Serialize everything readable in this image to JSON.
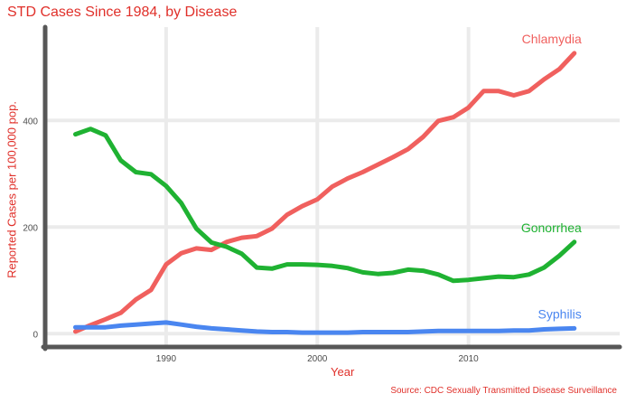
{
  "colors": {
    "accent": "#e0302a",
    "chlamydia": "#f0605e",
    "gonorrhea": "#1fb232",
    "syphilis": "#4a86f0",
    "axis": "#575757",
    "grid": "#ebebeb",
    "tick_text": "#4d4d4d"
  },
  "chart_data": {
    "type": "line",
    "title": "STD Cases Since 1984, by Disease",
    "xlabel": "Year",
    "ylabel": "Reported Cases per 100,000 pop.",
    "caption": "Source: CDC Sexually Transmitted Disease Surveillance",
    "xlim": [
      1982,
      2020
    ],
    "ylim": [
      -25,
      575
    ],
    "x_ticks": [
      1990,
      2000,
      2010
    ],
    "y_ticks": [
      0,
      200,
      400
    ],
    "grid": true,
    "legend": "direct labels at series ends",
    "x": [
      1984,
      1985,
      1986,
      1987,
      1988,
      1989,
      1990,
      1991,
      1992,
      1993,
      1994,
      1995,
      1996,
      1997,
      1998,
      1999,
      2000,
      2001,
      2002,
      2003,
      2004,
      2005,
      2006,
      2007,
      2008,
      2009,
      2010,
      2011,
      2012,
      2013,
      2014,
      2015,
      2016,
      2017
    ],
    "series": [
      {
        "name": "Chlamydia",
        "color": "#f0605e",
        "values": [
          4,
          16,
          27,
          39,
          64,
          82,
          130,
          151,
          160,
          157,
          172,
          180,
          183,
          197,
          223,
          239,
          252,
          276,
          291,
          303,
          317,
          331,
          346,
          369,
          399,
          406,
          424,
          455,
          455,
          447,
          455,
          477,
          496,
          526
        ]
      },
      {
        "name": "Gonorrhea",
        "color": "#1fb232",
        "values": [
          374,
          384,
          372,
          325,
          303,
          299,
          277,
          245,
          197,
          171,
          163,
          150,
          124,
          122,
          130,
          130,
          129,
          127,
          123,
          115,
          112,
          114,
          120,
          118,
          111,
          99,
          101,
          104,
          107,
          106,
          111,
          124,
          146,
          172
        ]
      },
      {
        "name": "Syphilis",
        "color": "#4a86f0",
        "values": [
          12,
          12,
          12,
          15,
          17,
          19,
          21,
          17,
          13,
          10,
          8,
          6,
          4,
          3,
          3,
          2,
          2,
          2,
          2,
          3,
          3,
          3,
          3,
          4,
          5,
          5,
          5,
          5,
          5,
          6,
          6,
          8,
          9,
          10
        ]
      }
    ]
  }
}
